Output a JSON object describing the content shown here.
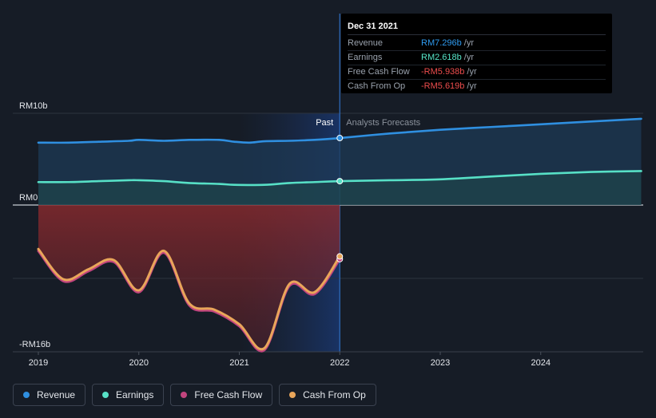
{
  "colors": {
    "revenue": "#2f8fe0",
    "earnings": "#57e0c6",
    "free_cash_flow": "#c2457e",
    "cash_from_op": "#e9a65a",
    "negative": "#ee4d4d"
  },
  "tooltip": {
    "date": "Dec 31 2021",
    "rows": [
      {
        "name": "Revenue",
        "value": "RM7.296b",
        "unit": "/yr",
        "color": "#2f9bf0"
      },
      {
        "name": "Earnings",
        "value": "RM2.618b",
        "unit": "/yr",
        "color": "#57e6c9"
      },
      {
        "name": "Free Cash Flow",
        "value": "-RM5.938b",
        "unit": "/yr",
        "color": "#ee4d4d"
      },
      {
        "name": "Cash From Op",
        "value": "-RM5.619b",
        "unit": "/yr",
        "color": "#ee4d4d"
      }
    ]
  },
  "legend": [
    {
      "label": "Revenue",
      "color": "#2f8fe0"
    },
    {
      "label": "Earnings",
      "color": "#57e0c6"
    },
    {
      "label": "Free Cash Flow",
      "color": "#c2457e"
    },
    {
      "label": "Cash From Op",
      "color": "#e9a65a"
    }
  ],
  "chart_data": {
    "type": "line",
    "y_axis": {
      "labels": [
        "RM10b",
        "RM0",
        "-RM16b"
      ],
      "ylim": [
        -16,
        10
      ],
      "unit": "billion RM"
    },
    "x_axis": {
      "ticks": [
        "2019",
        "2020",
        "2021",
        "2022",
        "2023",
        "2024"
      ],
      "xlim": [
        2019.0,
        2025.0
      ]
    },
    "past_label": "Past",
    "forecast_label": "Analysts Forecasts",
    "divider_x": 2022.0,
    "series": [
      {
        "name": "Revenue",
        "points": [
          [
            2019.0,
            6.8
          ],
          [
            2019.3,
            6.8
          ],
          [
            2019.6,
            6.9
          ],
          [
            2019.9,
            7.0
          ],
          [
            2020.0,
            7.1
          ],
          [
            2020.25,
            7.0
          ],
          [
            2020.5,
            7.1
          ],
          [
            2020.8,
            7.1
          ],
          [
            2020.95,
            6.9
          ],
          [
            2021.1,
            6.8
          ],
          [
            2021.25,
            6.95
          ],
          [
            2021.5,
            7.0
          ],
          [
            2021.75,
            7.1
          ],
          [
            2022.0,
            7.3
          ],
          [
            2022.5,
            7.8
          ],
          [
            2023.0,
            8.2
          ],
          [
            2023.5,
            8.5
          ],
          [
            2024.0,
            8.8
          ],
          [
            2024.5,
            9.1
          ],
          [
            2025.0,
            9.4
          ]
        ]
      },
      {
        "name": "Earnings",
        "points": [
          [
            2019.0,
            2.5
          ],
          [
            2019.3,
            2.5
          ],
          [
            2019.6,
            2.6
          ],
          [
            2019.9,
            2.7
          ],
          [
            2020.0,
            2.7
          ],
          [
            2020.25,
            2.6
          ],
          [
            2020.5,
            2.4
          ],
          [
            2020.8,
            2.3
          ],
          [
            2020.95,
            2.2
          ],
          [
            2021.25,
            2.2
          ],
          [
            2021.5,
            2.4
          ],
          [
            2021.75,
            2.5
          ],
          [
            2022.0,
            2.6
          ],
          [
            2022.5,
            2.7
          ],
          [
            2023.0,
            2.8
          ],
          [
            2023.5,
            3.1
          ],
          [
            2024.0,
            3.4
          ],
          [
            2024.5,
            3.6
          ],
          [
            2025.0,
            3.7
          ]
        ]
      },
      {
        "name": "Free Cash Flow",
        "points": [
          [
            2019.0,
            -5.0
          ],
          [
            2019.25,
            -8.3
          ],
          [
            2019.5,
            -7.2
          ],
          [
            2019.75,
            -6.2
          ],
          [
            2020.0,
            -9.5
          ],
          [
            2020.25,
            -5.2
          ],
          [
            2020.5,
            -10.9
          ],
          [
            2020.75,
            -11.6
          ],
          [
            2021.0,
            -13.2
          ],
          [
            2021.25,
            -15.8
          ],
          [
            2021.5,
            -8.8
          ],
          [
            2021.75,
            -9.7
          ],
          [
            2022.0,
            -5.9
          ]
        ]
      },
      {
        "name": "Cash From Op",
        "points": [
          [
            2019.0,
            -4.8
          ],
          [
            2019.25,
            -8.1
          ],
          [
            2019.5,
            -7.0
          ],
          [
            2019.75,
            -6.0
          ],
          [
            2020.0,
            -9.3
          ],
          [
            2020.25,
            -5.0
          ],
          [
            2020.5,
            -10.7
          ],
          [
            2020.75,
            -11.4
          ],
          [
            2021.0,
            -13.0
          ],
          [
            2021.25,
            -15.6
          ],
          [
            2021.5,
            -8.6
          ],
          [
            2021.75,
            -9.5
          ],
          [
            2022.0,
            -5.6
          ]
        ]
      }
    ]
  }
}
